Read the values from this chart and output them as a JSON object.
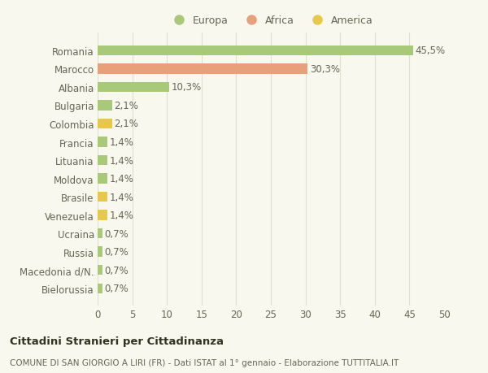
{
  "categories": [
    "Romania",
    "Marocco",
    "Albania",
    "Bulgaria",
    "Colombia",
    "Francia",
    "Lituania",
    "Moldova",
    "Brasile",
    "Venezuela",
    "Ucraina",
    "Russia",
    "Macedonia d/N.",
    "Bielorussia"
  ],
  "values": [
    45.5,
    30.3,
    10.3,
    2.1,
    2.1,
    1.4,
    1.4,
    1.4,
    1.4,
    1.4,
    0.7,
    0.7,
    0.7,
    0.7
  ],
  "labels": [
    "45,5%",
    "30,3%",
    "10,3%",
    "2,1%",
    "2,1%",
    "1,4%",
    "1,4%",
    "1,4%",
    "1,4%",
    "1,4%",
    "0,7%",
    "0,7%",
    "0,7%",
    "0,7%"
  ],
  "colors": [
    "#a8c87a",
    "#e8a07a",
    "#a8c87a",
    "#a8c87a",
    "#e8c84a",
    "#a8c87a",
    "#a8c87a",
    "#a8c87a",
    "#e8c84a",
    "#e8c84a",
    "#a8c87a",
    "#a8c87a",
    "#a8c87a",
    "#a8c87a"
  ],
  "legend": [
    {
      "label": "Europa",
      "color": "#a8c87a"
    },
    {
      "label": "Africa",
      "color": "#e8a07a"
    },
    {
      "label": "America",
      "color": "#e8c84a"
    }
  ],
  "xlim": [
    0,
    50
  ],
  "xticks": [
    0,
    5,
    10,
    15,
    20,
    25,
    30,
    35,
    40,
    45,
    50
  ],
  "title": "Cittadini Stranieri per Cittadinanza",
  "subtitle": "COMUNE DI SAN GIORGIO A LIRI (FR) - Dati ISTAT al 1° gennaio - Elaborazione TUTTITALIA.IT",
  "background_color": "#f8f8ee",
  "grid_color": "#e0e0d0",
  "text_color": "#666655",
  "label_fontsize": 8.5,
  "tick_fontsize": 8.5,
  "bar_height": 0.55
}
